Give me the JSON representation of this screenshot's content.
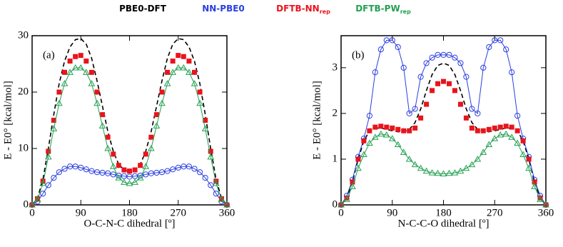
{
  "chart_data": [
    {
      "type": "line",
      "panel_label": "(a)",
      "xlabel": "O-C-N-C dihedral [º]",
      "ylabel": "E - E0° [kcal/mol]",
      "xlim": [
        0,
        360
      ],
      "xticks": [
        0,
        90,
        180,
        270,
        360
      ],
      "ylim": [
        0,
        30
      ],
      "yticks": [
        0,
        10,
        20,
        30
      ],
      "x": [
        0,
        10,
        20,
        30,
        40,
        50,
        60,
        70,
        80,
        90,
        100,
        110,
        120,
        130,
        140,
        150,
        160,
        170,
        180,
        190,
        200,
        210,
        220,
        230,
        240,
        250,
        260,
        270,
        280,
        290,
        300,
        310,
        320,
        330,
        340,
        350,
        360
      ],
      "series": [
        {
          "name": "PBE0-DFT",
          "color": "#000000",
          "line": true,
          "dash": true,
          "marker": "none",
          "values": [
            0,
            1.2,
            4.5,
            10,
            16,
            21.5,
            25.5,
            28,
            29.3,
            29.5,
            28.5,
            26,
            22,
            17.5,
            13,
            9.5,
            7.2,
            6.2,
            6,
            6.2,
            7.2,
            9.5,
            13,
            17.5,
            22,
            26,
            28.5,
            29.5,
            29.3,
            28,
            25.5,
            21.5,
            16,
            10,
            4.5,
            1.2,
            0
          ]
        },
        {
          "name": "NN-PBE0",
          "color": "#2a3fe0",
          "line": true,
          "dash": false,
          "marker": "circle",
          "values": [
            0,
            0.6,
            2,
            3.5,
            4.8,
            5.8,
            6.4,
            6.8,
            6.8,
            6.6,
            6.3,
            6,
            5.8,
            5.7,
            5.6,
            5.4,
            5.2,
            5.1,
            5,
            5.1,
            5.2,
            5.4,
            5.6,
            5.7,
            5.8,
            6,
            6.3,
            6.6,
            6.8,
            6.8,
            6.4,
            5.8,
            4.8,
            3.5,
            2,
            0.6,
            0
          ]
        },
        {
          "name": "DFTB-NN",
          "name_subscript": "rep",
          "color": "#e8141c",
          "line": false,
          "dash": false,
          "marker": "square",
          "values": [
            0,
            1.1,
            4.2,
            9.5,
            15,
            20,
            23.5,
            25.5,
            26.3,
            26.5,
            25.5,
            23.5,
            20,
            16,
            12,
            9,
            7,
            6.2,
            6,
            6.2,
            7,
            9,
            12,
            16,
            20,
            23.5,
            25.5,
            26.5,
            26.3,
            25.5,
            23.5,
            20,
            15,
            9.5,
            4.2,
            1.1,
            0
          ]
        },
        {
          "name": "DFTB-PW",
          "name_subscript": "rep",
          "color": "#22a050",
          "line": true,
          "dash": false,
          "marker": "triangle",
          "values": [
            0,
            1,
            3.8,
            8.5,
            13.5,
            18,
            21.5,
            23.5,
            24.3,
            24.3,
            23.5,
            21.5,
            18,
            14,
            10,
            6.8,
            4.8,
            4,
            3.8,
            4,
            4.8,
            6.8,
            10,
            14,
            18,
            21.5,
            23.5,
            24.3,
            24.3,
            23.5,
            21.5,
            18,
            13.5,
            8.5,
            3.8,
            1,
            0
          ]
        }
      ]
    },
    {
      "type": "line",
      "panel_label": "(b)",
      "xlabel": "N-C-C-O dihedral [º]",
      "ylabel": "E - E0° [kcal/mol]",
      "xlim": [
        0,
        360
      ],
      "xticks": [
        0,
        90,
        180,
        270,
        360
      ],
      "ylim": [
        0,
        3.7
      ],
      "yticks": [
        0,
        1,
        2,
        3
      ],
      "x": [
        0,
        10,
        20,
        30,
        40,
        50,
        60,
        70,
        80,
        90,
        100,
        110,
        120,
        130,
        140,
        150,
        160,
        170,
        180,
        190,
        200,
        210,
        220,
        230,
        240,
        250,
        260,
        270,
        280,
        290,
        300,
        310,
        320,
        330,
        340,
        350,
        360
      ],
      "series": [
        {
          "color": "#000000",
          "line": true,
          "dash": true,
          "marker": "none",
          "values": [
            0,
            0.15,
            0.5,
            1,
            1.4,
            1.62,
            1.68,
            1.68,
            1.65,
            1.62,
            1.6,
            1.6,
            1.65,
            1.8,
            2.1,
            2.5,
            2.85,
            3.05,
            3.1,
            3.05,
            2.85,
            2.5,
            2.1,
            1.8,
            1.65,
            1.6,
            1.6,
            1.62,
            1.65,
            1.68,
            1.68,
            1.62,
            1.4,
            1,
            0.5,
            0.15,
            0
          ]
        },
        {
          "color": "#2a3fe0",
          "line": true,
          "dash": false,
          "marker": "circle",
          "values": [
            0,
            0.2,
            0.55,
            1.05,
            1.45,
            1.95,
            2.9,
            3.4,
            3.6,
            3.6,
            3.45,
            3,
            2,
            2.1,
            2.8,
            3.1,
            3.22,
            3.28,
            3.28,
            3.28,
            3.22,
            3.1,
            2.8,
            2.1,
            2,
            3,
            3.45,
            3.6,
            3.6,
            3.4,
            2.9,
            1.95,
            1.45,
            1.05,
            0.55,
            0.2,
            0
          ]
        },
        {
          "color": "#e8141c",
          "line": false,
          "dash": false,
          "marker": "square",
          "values": [
            0,
            0.15,
            0.5,
            1,
            1.4,
            1.62,
            1.7,
            1.72,
            1.7,
            1.68,
            1.65,
            1.62,
            1.62,
            1.68,
            1.9,
            2.2,
            2.5,
            2.65,
            2.7,
            2.65,
            2.5,
            2.2,
            1.9,
            1.68,
            1.62,
            1.62,
            1.65,
            1.68,
            1.7,
            1.72,
            1.7,
            1.62,
            1.4,
            1,
            0.5,
            0.15,
            0
          ]
        },
        {
          "color": "#22a050",
          "line": true,
          "dash": false,
          "marker": "triangle",
          "values": [
            0,
            0.12,
            0.4,
            0.8,
            1.1,
            1.35,
            1.48,
            1.55,
            1.53,
            1.45,
            1.32,
            1.15,
            1,
            0.88,
            0.8,
            0.74,
            0.7,
            0.69,
            0.68,
            0.69,
            0.7,
            0.74,
            0.8,
            0.88,
            1,
            1.15,
            1.32,
            1.45,
            1.53,
            1.55,
            1.48,
            1.35,
            1.1,
            0.8,
            0.4,
            0.12,
            0
          ]
        }
      ]
    }
  ]
}
